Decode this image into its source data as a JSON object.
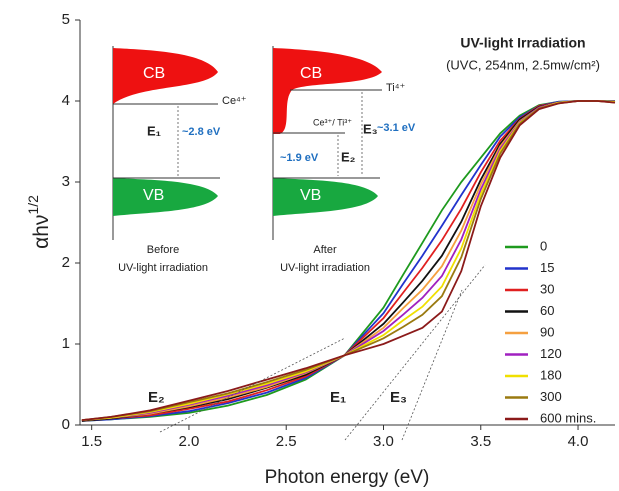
{
  "chart_data": {
    "type": "line",
    "title": "UV-light Irradiation",
    "subtitle": "(UVC, 254nm, 2.5mw/cm²)",
    "x_label": "Photon energy (eV)",
    "y_label": "αhν",
    "y_label_sup": "1/2",
    "annotations": [
      "E₂",
      "E₁",
      "E₃"
    ],
    "xlim": [
      1.44,
      4.19
    ],
    "ylim": [
      0,
      5
    ],
    "xticks": [
      1.5,
      {
        "value": 2,
        "label": "2.0"
      },
      2.5,
      {
        "value": 3,
        "label": "3.0"
      },
      3.5,
      {
        "value": 4,
        "label": "4.0"
      }
    ],
    "yticks": [
      0,
      1,
      2,
      3,
      4,
      5
    ],
    "x": [
      1.45,
      1.6,
      1.8,
      2.0,
      2.2,
      2.4,
      2.6,
      2.8,
      3.0,
      3.1,
      3.2,
      3.3,
      3.4,
      3.5,
      3.6,
      3.7,
      3.8,
      3.9,
      4.0,
      4.1,
      4.19
    ],
    "series": [
      {
        "name": "0",
        "color": "#1e9a1e",
        "values": [
          0.05,
          0.07,
          0.1,
          0.15,
          0.24,
          0.37,
          0.56,
          0.86,
          1.45,
          1.85,
          2.25,
          2.65,
          3.0,
          3.3,
          3.6,
          3.82,
          3.95,
          3.99,
          4.0,
          4.0,
          4.0
        ]
      },
      {
        "name": "15",
        "color": "#2233cc",
        "values": [
          0.05,
          0.07,
          0.11,
          0.17,
          0.27,
          0.4,
          0.58,
          0.86,
          1.38,
          1.74,
          2.09,
          2.46,
          2.84,
          3.21,
          3.56,
          3.8,
          3.94,
          3.99,
          4.0,
          4.0,
          4.0
        ]
      },
      {
        "name": "30",
        "color": "#e02020",
        "values": [
          0.05,
          0.08,
          0.12,
          0.2,
          0.29,
          0.43,
          0.6,
          0.86,
          1.32,
          1.63,
          1.94,
          2.28,
          2.67,
          3.12,
          3.51,
          3.78,
          3.94,
          3.98,
          4.0,
          4.0,
          3.99
        ]
      },
      {
        "name": "60",
        "color": "#111111",
        "values": [
          0.05,
          0.08,
          0.14,
          0.22,
          0.32,
          0.46,
          0.62,
          0.86,
          1.25,
          1.51,
          1.78,
          2.09,
          2.51,
          3.03,
          3.47,
          3.77,
          3.93,
          3.98,
          4.0,
          4.0,
          3.99
        ]
      },
      {
        "name": "90",
        "color": "#f5a040",
        "values": [
          0.06,
          0.09,
          0.14,
          0.23,
          0.34,
          0.47,
          0.64,
          0.86,
          1.2,
          1.44,
          1.67,
          1.96,
          2.4,
          2.97,
          3.44,
          3.75,
          3.92,
          3.98,
          4.0,
          4.0,
          3.99
        ]
      },
      {
        "name": "120",
        "color": "#a020c0",
        "values": [
          0.06,
          0.09,
          0.15,
          0.25,
          0.36,
          0.49,
          0.65,
          0.86,
          1.16,
          1.36,
          1.57,
          1.84,
          2.29,
          2.91,
          3.41,
          3.74,
          3.92,
          3.98,
          4.0,
          4.0,
          3.99
        ]
      },
      {
        "name": "180",
        "color": "#f0e000",
        "values": [
          0.06,
          0.09,
          0.16,
          0.26,
          0.38,
          0.51,
          0.66,
          0.86,
          1.11,
          1.29,
          1.46,
          1.71,
          2.18,
          2.85,
          3.38,
          3.73,
          3.91,
          3.98,
          4.0,
          4.0,
          3.99
        ]
      },
      {
        "name": "300",
        "color": "#9a7a10",
        "values": [
          0.06,
          0.1,
          0.17,
          0.28,
          0.39,
          0.53,
          0.68,
          0.86,
          1.07,
          1.21,
          1.36,
          1.59,
          2.07,
          2.79,
          3.35,
          3.72,
          3.91,
          3.97,
          4.0,
          4.0,
          3.98
        ]
      },
      {
        "name": "600 mins.",
        "color": "#8b1a1a",
        "values": [
          0.06,
          0.1,
          0.18,
          0.3,
          0.42,
          0.56,
          0.7,
          0.86,
          1.0,
          1.1,
          1.2,
          1.4,
          1.9,
          2.7,
          3.3,
          3.7,
          3.9,
          3.97,
          4.0,
          4.0,
          3.98
        ]
      }
    ],
    "grid": false
  },
  "inset": {
    "before": {
      "cb": "CB",
      "vb": "VB",
      "level": "Ce⁴⁺",
      "gap": "E₁",
      "gap_value": "~2.8 eV",
      "caption": [
        "Before",
        "UV-light irradiation"
      ]
    },
    "after": {
      "cb": "CB",
      "vb": "VB",
      "level_top": "Ti⁴⁺",
      "level_mid": "Ce³⁺/ Ti³⁺",
      "gap3": "E₃",
      "gap3_value": "~3.1 eV",
      "gap2": "E₂",
      "gap2_value": "~1.9 eV",
      "caption": [
        "After",
        "UV-light irradiation"
      ]
    }
  }
}
